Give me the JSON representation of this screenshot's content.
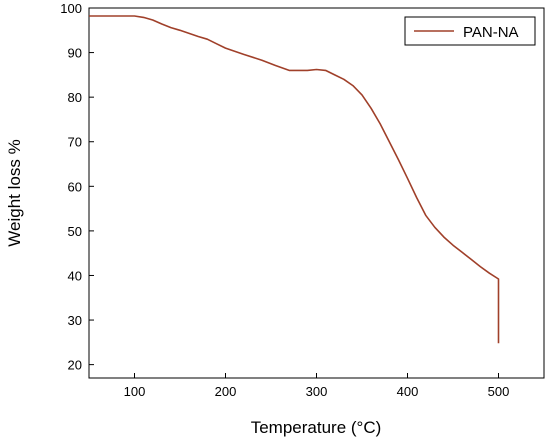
{
  "chart_data": {
    "type": "line",
    "title": "",
    "xlabel": "Temperature (°C)",
    "ylabel": "Weight loss %",
    "xlim": [
      50,
      550
    ],
    "ylim": [
      17,
      100
    ],
    "xticks": [
      100,
      200,
      300,
      400,
      500
    ],
    "yticks": [
      20,
      30,
      40,
      50,
      60,
      70,
      80,
      90,
      100
    ],
    "grid": false,
    "legend_position": "top-right",
    "series": [
      {
        "name": "PAN-NA",
        "color": "#a0402a",
        "x": [
          50,
          100,
          110,
          120,
          130,
          140,
          150,
          160,
          170,
          180,
          190,
          200,
          220,
          240,
          255,
          270,
          280,
          290,
          300,
          310,
          320,
          330,
          340,
          350,
          360,
          370,
          380,
          390,
          400,
          410,
          420,
          430,
          440,
          450,
          460,
          470,
          480,
          490,
          500,
          500
        ],
        "y": [
          98.2,
          98.2,
          97.9,
          97.3,
          96.4,
          95.6,
          95.0,
          94.3,
          93.6,
          93.0,
          92.0,
          91.0,
          89.6,
          88.3,
          87.1,
          86.0,
          86.0,
          86.0,
          86.2,
          86.0,
          85.0,
          84.0,
          82.6,
          80.5,
          77.5,
          74.0,
          70.0,
          66.0,
          61.8,
          57.5,
          53.5,
          50.8,
          48.6,
          46.8,
          45.2,
          43.6,
          42.0,
          40.5,
          39.2,
          24.8
        ]
      }
    ]
  }
}
